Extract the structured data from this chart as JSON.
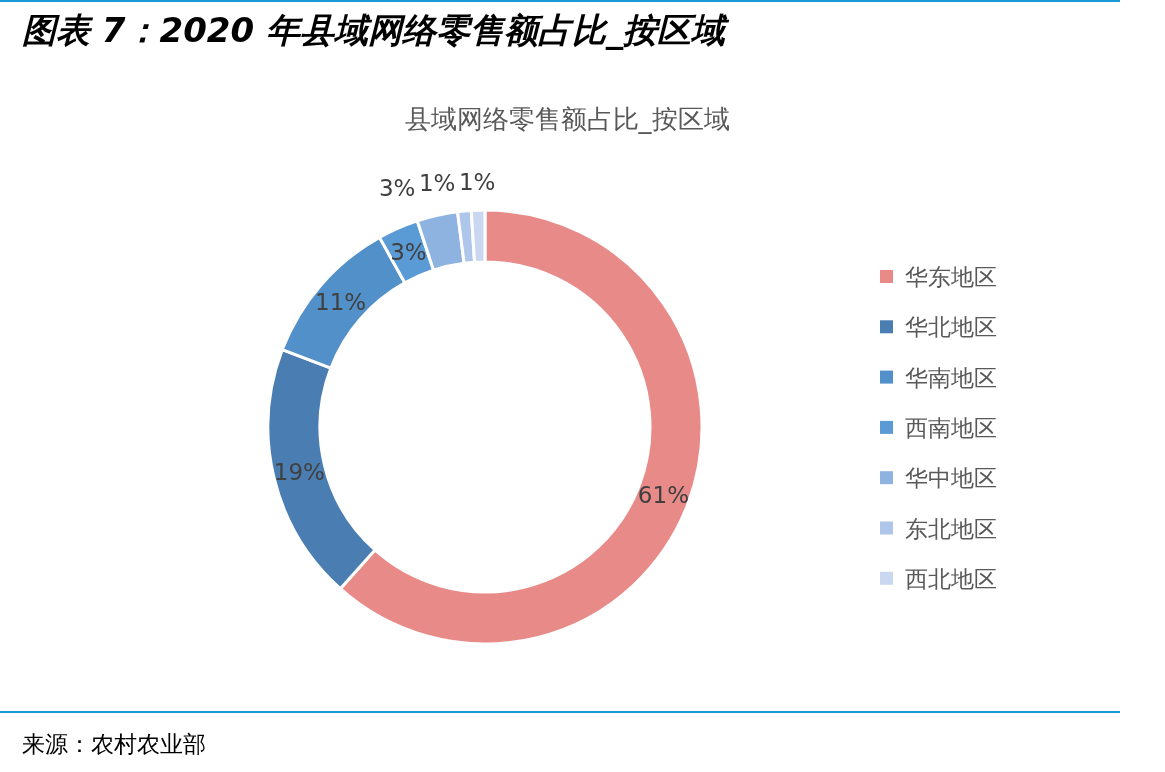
{
  "chart_data": {
    "type": "donut",
    "title": "图表 7：2020 年县域网络零售额占比_按区域",
    "subtitle": "县域网络零售额占比_按区域",
    "categories": [
      "华东地区",
      "华北地区",
      "华南地区",
      "西南地区",
      "华中地区",
      "东北地区",
      "西北地区"
    ],
    "values": [
      61,
      19,
      11,
      3,
      3,
      1,
      1
    ],
    "colors": [
      "#e88a87",
      "#4a7eb3",
      "#5190c8",
      "#5b9bd5",
      "#8fb3e0",
      "#aec6ea",
      "#c9d8f0"
    ],
    "value_labels": [
      "61%",
      "19%",
      "11%",
      "3%",
      "3%",
      "1%",
      "1%"
    ],
    "legend": "right",
    "annotations": [
      "来源：农村农业部"
    ]
  }
}
